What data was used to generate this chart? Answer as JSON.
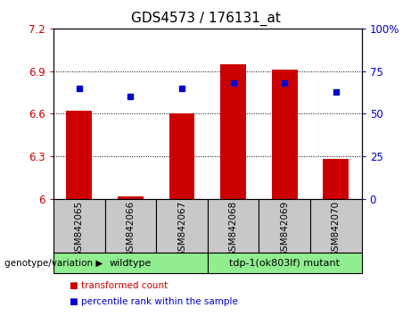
{
  "title": "GDS4573 / 176131_at",
  "samples": [
    "GSM842065",
    "GSM842066",
    "GSM842067",
    "GSM842068",
    "GSM842069",
    "GSM842070"
  ],
  "transformed_count": [
    6.62,
    6.02,
    6.6,
    6.95,
    6.91,
    6.28
  ],
  "percentile_rank": [
    65,
    60,
    65,
    68,
    68,
    63
  ],
  "ylim_left": [
    6.0,
    7.2
  ],
  "ylim_right": [
    0,
    100
  ],
  "yticks_left": [
    6.0,
    6.3,
    6.6,
    6.9,
    7.2
  ],
  "yticks_right": [
    0,
    25,
    50,
    75,
    100
  ],
  "ytick_labels_left": [
    "6",
    "6.3",
    "6.6",
    "6.9",
    "7.2"
  ],
  "ytick_labels_right": [
    "0",
    "25",
    "50",
    "75",
    "100%"
  ],
  "bar_color": "#cc0000",
  "dot_color": "#0000cc",
  "bar_width": 0.5,
  "groups": [
    {
      "label": "wildtype",
      "size": 3,
      "color": "#90ee90"
    },
    {
      "label": "tdp-1(ok803lf) mutant",
      "size": 3,
      "color": "#90ee90"
    }
  ],
  "group_label_prefix": "genotype/variation ▶",
  "legend_items": [
    {
      "label": "transformed count",
      "color": "#cc0000"
    },
    {
      "label": "percentile rank within the sample",
      "color": "#0000cc"
    }
  ],
  "sample_box_color": "#c8c8c8",
  "title_fontsize": 11,
  "tick_fontsize": 8.5,
  "label_fontsize": 8,
  "bar_base": 6.0
}
